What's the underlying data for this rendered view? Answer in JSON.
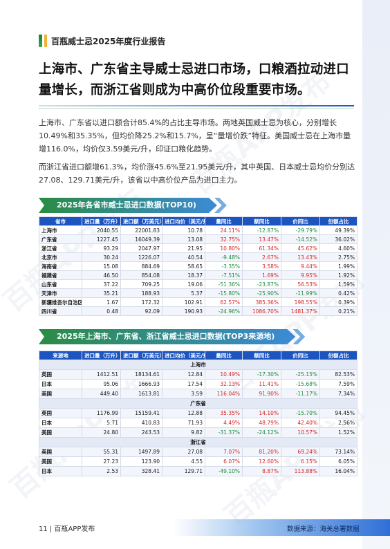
{
  "header": {
    "title": "百瓶威士忌2025年度行业报告"
  },
  "main_title": "上海市、广东省主导威士忌进口市场，口粮酒拉动进口量增长，而浙江省则成为中高价位段重要市场。",
  "paragraph1": "上海市、广东省以进口额合计85.4%的占比主导市场。两地英国威士忌为核心，分别增长10.49%和35.35%，但均价降25.2%和15.7%，呈“量增价跌”特征。美国威士忌在上海市量增116.0%，均价仅3.59美元/升，印证口粮化趋势。",
  "paragraph2": "而浙江省进口额增61.3%，均价涨45.6%至21.95美元/升，其中英国、日本威士忌均价分别达27.08、129.71美元/升，该省以中高价位产品为进口主力。",
  "table1": {
    "title": "2025年各省市威士忌进口数据(TOP10)",
    "headers": [
      "省市",
      "进口量（万升）",
      "进口额（万美元）",
      "进口均价（美元/升）",
      "量同比",
      "额同比",
      "价同比",
      "份额占比"
    ],
    "rows": [
      [
        "上海市",
        "2040.55",
        "22001.83",
        "10.78",
        "24.11%",
        "-12.87%",
        "-29.79%",
        "49.39%"
      ],
      [
        "广东省",
        "1227.45",
        "16049.39",
        "13.08",
        "32.75%",
        "13.47%",
        "-14.52%",
        "36.02%"
      ],
      [
        "浙江省",
        "93.29",
        "2047.97",
        "21.95",
        "10.80%",
        "61.34%",
        "45.62%",
        "4.60%"
      ],
      [
        "北京市",
        "30.24",
        "1226.07",
        "40.54",
        "-9.48%",
        "2.67%",
        "13.43%",
        "2.75%"
      ],
      [
        "海南省",
        "15.08",
        "884.69",
        "58.65",
        "-3.35%",
        "3.58%",
        "9.44%",
        "1.99%"
      ],
      [
        "福建省",
        "46.50",
        "854.08",
        "18.37",
        "-7.51%",
        "1.69%",
        "9.95%",
        "1.92%"
      ],
      [
        "山东省",
        "37.22",
        "709.25",
        "19.06",
        "-51.36%",
        "-23.87%",
        "56.53%",
        "1.59%"
      ],
      [
        "天津市",
        "35.21",
        "188.93",
        "5.37",
        "-15.80%",
        "-25.90%",
        "-11.99%",
        "0.42%"
      ],
      [
        "新疆维吾尔自治区",
        "1.67",
        "172.32",
        "102.91",
        "62.57%",
        "385.36%",
        "198.55%",
        "0.39%"
      ],
      [
        "四川省",
        "0.48",
        "92.09",
        "190.93",
        "-24.96%",
        "1086.70%",
        "1481.37%",
        "0.21%"
      ]
    ]
  },
  "table2": {
    "title": "2025年上海市、广东省、浙江省威士忌进口数据(TOP3来源地)",
    "headers": [
      "来源地",
      "进口量（万升）",
      "进口额（万美元）",
      "进口均价（美元/升）",
      "量同比",
      "额同比",
      "价同比",
      "份额占比"
    ],
    "groups": [
      {
        "name": "上海市",
        "rows": [
          [
            "英国",
            "1412.51",
            "18134.61",
            "12.84",
            "10.49%",
            "-17.30%",
            "-25.15%",
            "82.53%"
          ],
          [
            "日本",
            "95.06",
            "1666.93",
            "17.54",
            "32.13%",
            "11.41%",
            "-15.68%",
            "7.59%"
          ],
          [
            "美国",
            "449.40",
            "1613.81",
            "3.59",
            "116.04%",
            "91.90%",
            "-11.17%",
            "7.34%"
          ]
        ]
      },
      {
        "name": "广东省",
        "rows": [
          [
            "英国",
            "1176.99",
            "15159.41",
            "12.88",
            "35.35%",
            "14.10%",
            "-15.70%",
            "94.45%"
          ],
          [
            "日本",
            "5.71",
            "410.83",
            "71.93",
            "4.49%",
            "48.79%",
            "42.40%",
            "2.56%"
          ],
          [
            "美国",
            "24.80",
            "243.53",
            "9.82",
            "-31.37%",
            "-24.12%",
            "10.57%",
            "1.52%"
          ]
        ]
      },
      {
        "name": "浙江省",
        "rows": [
          [
            "英国",
            "55.31",
            "1497.89",
            "27.08",
            "7.07%",
            "81.20%",
            "69.24%",
            "73.14%"
          ],
          [
            "美国",
            "27.23",
            "123.90",
            "4.55",
            "6.07%",
            "12.60%",
            "6.15%",
            "6.05%"
          ],
          [
            "日本",
            "2.53",
            "328.41",
            "129.71",
            "-49.10%",
            "8.87%",
            "113.88%",
            "16.04%"
          ]
        ]
      }
    ]
  },
  "footer": {
    "page": "11  |  百瓶APP发布",
    "source": "数据来源：海关总署数据"
  },
  "watermark": "百瓶APP发布",
  "colors": {
    "header_blue": "#1d55c0",
    "positive": "#d62525",
    "negative": "#1b8c3a",
    "accent_green": "#2a8c43"
  }
}
